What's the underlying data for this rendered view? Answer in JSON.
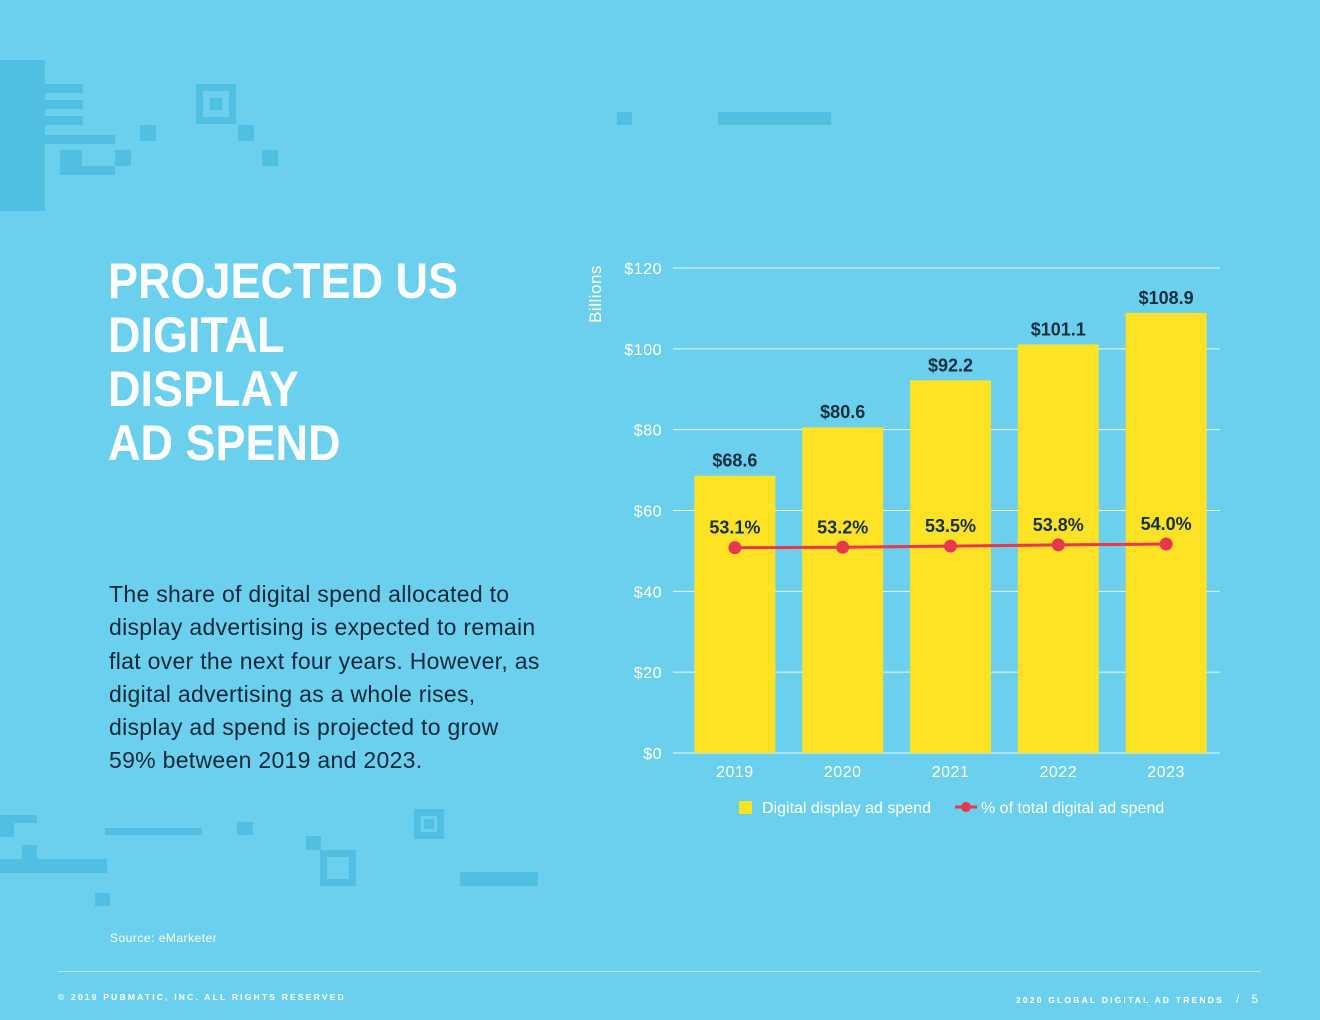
{
  "title_lines": [
    "PROJECTED US",
    "DIGITAL DISPLAY",
    "AD SPEND"
  ],
  "body": "The share of digital spend allocated to display advertising is expected to remain flat over the next four years. However, as digital advertising as a whole rises, display ad spend is projected to grow 59% between 2019 and 2023.",
  "source": "Source: eMarketer",
  "footer": {
    "left": "© 2019 PUBMATIC, INC. ALL RIGHTS RESERVED",
    "right": "2020 GLOBAL DIGITAL AD TRENDS",
    "separator": "/",
    "page": "5"
  },
  "colors": {
    "background": "#6bcfee",
    "bar": "#ffe126",
    "line": "#e8384f",
    "text_dark": "#16303d"
  },
  "chart_data": {
    "type": "bar",
    "categories": [
      "2019",
      "2020",
      "2021",
      "2022",
      "2023"
    ],
    "ylabel": "Billions",
    "ylim": [
      0,
      120
    ],
    "yticks": [
      0,
      20,
      40,
      60,
      80,
      100,
      120
    ],
    "ytick_labels": [
      "$0",
      "$20",
      "$40",
      "$60",
      "$80",
      "$100",
      "$120"
    ],
    "grid": true,
    "legend_position": "bottom",
    "series": [
      {
        "name": "Digital display ad spend",
        "type": "bar",
        "values": [
          68.6,
          80.6,
          92.2,
          101.1,
          108.9
        ],
        "labels": [
          "$68.6",
          "$80.6",
          "$92.2",
          "$101.1",
          "$108.9"
        ]
      },
      {
        "name": "% of total digital ad spend",
        "type": "line",
        "values": [
          53.1,
          53.2,
          53.5,
          53.8,
          54.0
        ],
        "labels": [
          "53.1%",
          "53.2%",
          "53.5%",
          "53.8%",
          "54.0%"
        ]
      }
    ]
  }
}
